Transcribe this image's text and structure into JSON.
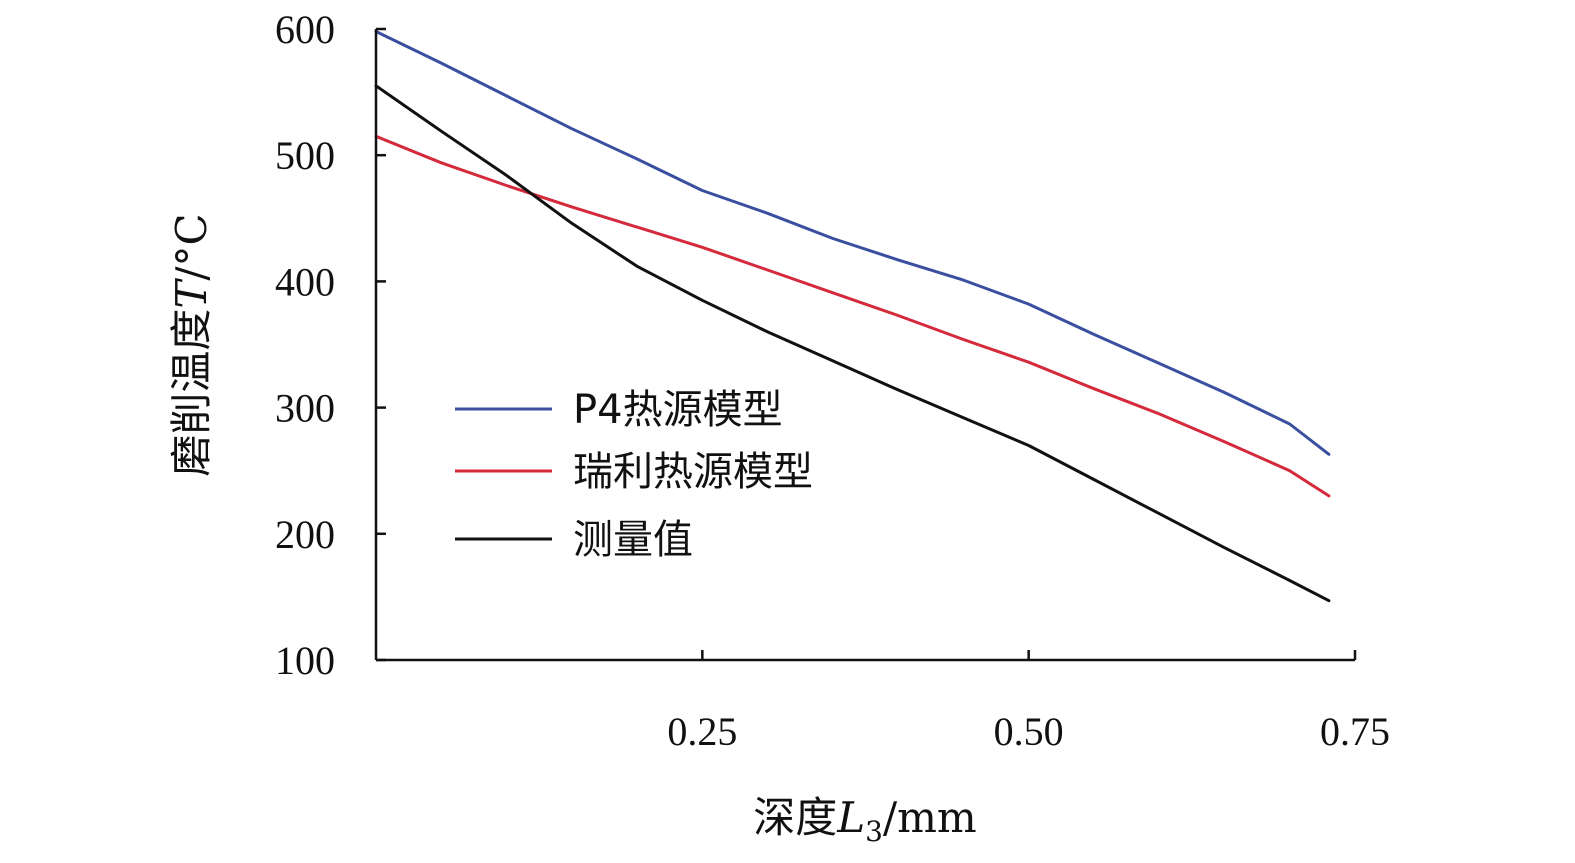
{
  "chart_data": {
    "type": "line",
    "title": "",
    "xlabel": "深度L3/mm",
    "xlabel_parts": {
      "main": "深度",
      "var": "L",
      "sub": "3",
      "unit": "/mm"
    },
    "ylabel": "磨削温度T/°C",
    "ylabel_parts": {
      "main": "磨削温度",
      "var": "T",
      "unit": "/°C"
    },
    "xlim": [
      0,
      0.75
    ],
    "ylim": [
      100,
      600
    ],
    "xticks": [
      0.25,
      0.5,
      0.75
    ],
    "xtick_labels": [
      "0.25",
      "0.50",
      "0.75"
    ],
    "yticks": [
      100,
      200,
      300,
      400,
      500,
      600
    ],
    "ytick_labels": [
      "100",
      "200",
      "300",
      "400",
      "500",
      "600"
    ],
    "grid": false,
    "legend_position": "center-left",
    "series": [
      {
        "name": "P4热源模型",
        "color": "#3a4fa0",
        "x": [
          0,
          0.05,
          0.1,
          0.15,
          0.2,
          0.25,
          0.3,
          0.35,
          0.4,
          0.45,
          0.5,
          0.55,
          0.6,
          0.65,
          0.7,
          0.73
        ],
        "y": [
          598,
          573,
          547,
          521,
          497,
          472,
          454,
          434,
          417,
          401,
          382,
          358,
          335,
          312,
          287,
          263
        ]
      },
      {
        "name": "瑞利热源模型",
        "color": "#d42a3c",
        "x": [
          0,
          0.05,
          0.1,
          0.15,
          0.2,
          0.25,
          0.3,
          0.35,
          0.4,
          0.45,
          0.5,
          0.55,
          0.6,
          0.65,
          0.7,
          0.73
        ],
        "y": [
          515,
          494,
          476,
          459,
          443,
          427,
          409,
          391,
          373,
          354,
          336,
          315,
          295,
          273,
          250,
          230
        ]
      },
      {
        "name": "测量值",
        "color": "#111111",
        "x": [
          0,
          0.05,
          0.1,
          0.15,
          0.2,
          0.25,
          0.3,
          0.35,
          0.4,
          0.45,
          0.5,
          0.55,
          0.6,
          0.65,
          0.7,
          0.73
        ],
        "y": [
          555,
          519,
          484,
          446,
          412,
          385,
          360,
          337,
          314,
          292,
          270,
          243,
          216,
          189,
          163,
          147
        ]
      }
    ]
  }
}
